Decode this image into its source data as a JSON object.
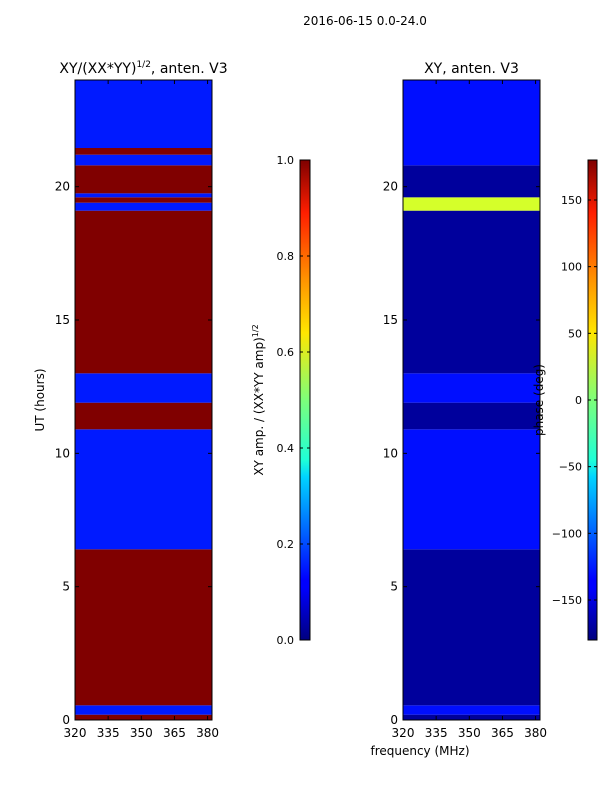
{
  "suptitle": "2016-06-15 0.0-24.0",
  "chart_data": [
    {
      "type": "heatmap",
      "title": "XY/(XX*YY)^1/2, anten. V3",
      "title_main": "XY/(XX*YY)",
      "title_exp": "1/2",
      "title_tail": ", anten. V3",
      "ylabel": "UT (hours)",
      "xlabel": "",
      "xlim": [
        320,
        382
      ],
      "ylim": [
        0,
        24
      ],
      "xticks": [
        320,
        335,
        350,
        365,
        380
      ],
      "yticks": [
        0,
        5,
        10,
        15,
        20
      ],
      "colorbar": {
        "label": "XY amp. / (XX*YY amp)^1/2",
        "label_main": "XY amp. / (XX*YY amp)",
        "label_exp": "1/2",
        "range": [
          0.0,
          1.0
        ],
        "ticks": [
          "0.0",
          "0.2",
          "0.4",
          "0.6",
          "0.8",
          "1.0"
        ],
        "tick_values": [
          0.0,
          0.2,
          0.4,
          0.6,
          0.8,
          1.0
        ]
      },
      "blocks": [
        {
          "t0": 0.0,
          "t1": 0.2,
          "value": 1.0
        },
        {
          "t0": 0.2,
          "t1": 0.55,
          "value": 0.15
        },
        {
          "t0": 0.55,
          "t1": 6.4,
          "value": 1.0
        },
        {
          "t0": 6.4,
          "t1": 10.9,
          "value": 0.15
        },
        {
          "t0": 10.9,
          "t1": 11.9,
          "value": 1.0
        },
        {
          "t0": 11.9,
          "t1": 13.0,
          "value": 0.15
        },
        {
          "t0": 13.0,
          "t1": 19.1,
          "value": 1.0
        },
        {
          "t0": 19.1,
          "t1": 19.4,
          "value": 0.15
        },
        {
          "t0": 19.4,
          "t1": 19.6,
          "value": 1.0
        },
        {
          "t0": 19.6,
          "t1": 19.75,
          "value": 0.15
        },
        {
          "t0": 19.75,
          "t1": 20.8,
          "value": 1.0
        },
        {
          "t0": 20.8,
          "t1": 21.2,
          "value": 0.15
        },
        {
          "t0": 21.2,
          "t1": 21.45,
          "value": 1.0
        },
        {
          "t0": 21.45,
          "t1": 24.0,
          "value": 0.15
        }
      ]
    },
    {
      "type": "heatmap",
      "title": "XY, anten. V3",
      "ylabel": "",
      "xlabel": "frequency (MHz)",
      "xlim": [
        320,
        382
      ],
      "ylim": [
        0,
        24
      ],
      "xticks": [
        320,
        335,
        350,
        365,
        380
      ],
      "yticks": [
        0,
        5,
        10,
        15,
        20
      ],
      "colorbar": {
        "label": "phase (deg)",
        "range": [
          -180,
          180
        ],
        "ticks": [
          "−150",
          "−100",
          "−50",
          "0",
          "50",
          "100",
          "150"
        ],
        "tick_values": [
          -150,
          -100,
          -50,
          0,
          50,
          100,
          150
        ]
      },
      "blocks": [
        {
          "t0": 0.0,
          "t1": 0.2,
          "value": -170
        },
        {
          "t0": 0.2,
          "t1": 0.55,
          "value": -130
        },
        {
          "t0": 0.55,
          "t1": 6.4,
          "value": -170
        },
        {
          "t0": 6.4,
          "t1": 10.9,
          "value": -130
        },
        {
          "t0": 10.9,
          "t1": 11.9,
          "value": -170
        },
        {
          "t0": 11.9,
          "t1": 13.0,
          "value": -130
        },
        {
          "t0": 13.0,
          "t1": 19.1,
          "value": -170
        },
        {
          "t0": 19.1,
          "t1": 19.6,
          "value": 30
        },
        {
          "t0": 19.6,
          "t1": 20.8,
          "value": -170
        },
        {
          "t0": 20.8,
          "t1": 24.0,
          "value": -130
        }
      ]
    }
  ]
}
